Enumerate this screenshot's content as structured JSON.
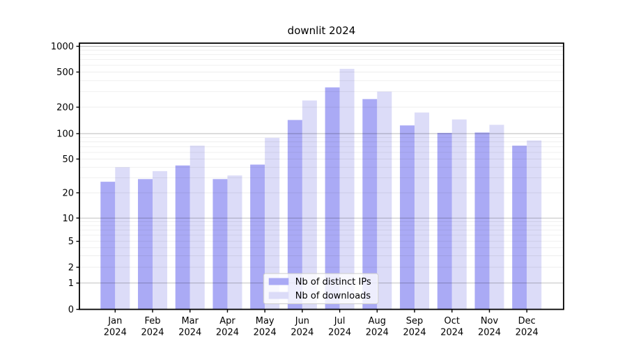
{
  "chart_data": {
    "type": "bar",
    "title": "downlit 2024",
    "categories": [
      "Jan",
      "Feb",
      "Mar",
      "Apr",
      "May",
      "Jun",
      "Jul",
      "Aug",
      "Sep",
      "Oct",
      "Nov",
      "Dec"
    ],
    "x_year_line": "2024",
    "series": [
      {
        "name": "Nb of distinct IPs",
        "color": "#aaaaf5",
        "values": [
          27,
          29,
          42,
          29,
          43,
          143,
          335,
          247,
          124,
          102,
          103,
          72
        ]
      },
      {
        "name": "Nb of downloads",
        "color": "#dcdcf8",
        "values": [
          40,
          36,
          72,
          32,
          89,
          238,
          545,
          300,
          174,
          145,
          126,
          83
        ]
      }
    ],
    "yscale": "symlog",
    "y_ticks": [
      1000,
      500,
      200,
      100,
      50,
      20,
      10,
      5,
      2,
      1,
      0
    ],
    "ylim": [
      0,
      1080
    ],
    "xlabel": "",
    "ylabel": "",
    "grid": true,
    "legend_position": "lower center",
    "legend_labels": [
      "Nb of distinct IPs",
      "Nb of downloads"
    ]
  },
  "colors": {
    "background": "#ffffff",
    "spine": "#000000",
    "major_grid": "rgba(0,0,0,0.28)",
    "minor_grid": "rgba(0,0,0,0.07)",
    "tick_label": "#000000",
    "legend_border": "#cccccc",
    "legend_background": "#ffffff"
  }
}
